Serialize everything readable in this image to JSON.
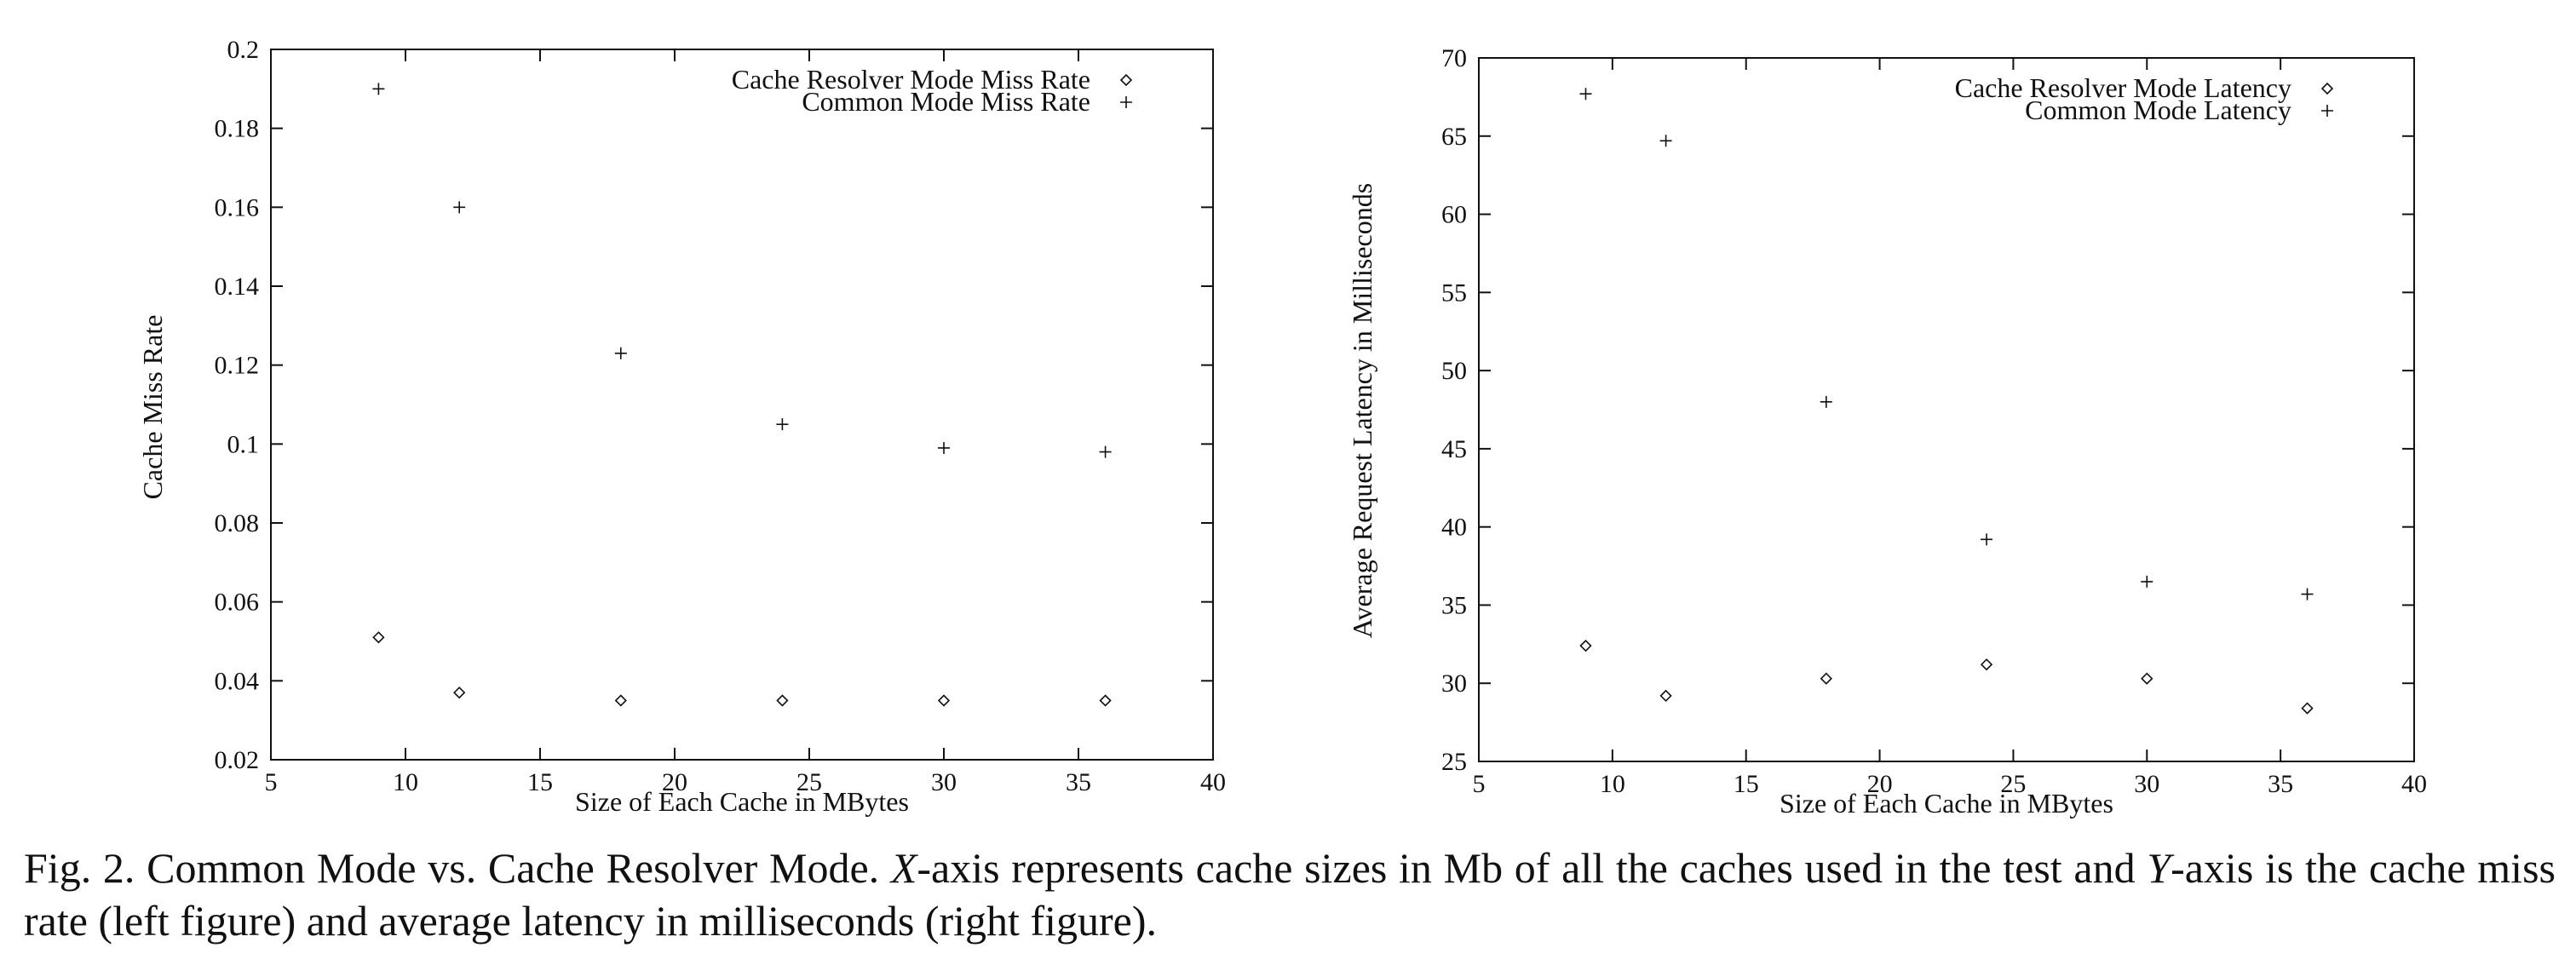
{
  "chart_data": [
    {
      "type": "scatter",
      "xlabel": "Size of Each Cache in MBytes",
      "ylabel": "Cache Miss Rate",
      "xlim": [
        5,
        40
      ],
      "ylim": [
        0.02,
        0.2
      ],
      "xticks": [
        5,
        10,
        15,
        20,
        25,
        30,
        35,
        40
      ],
      "yticks": [
        0.02,
        0.04,
        0.06,
        0.08,
        0.1,
        0.12,
        0.14,
        0.16,
        0.18,
        0.2
      ],
      "ytick_labels": [
        "0.02",
        "0.04",
        "0.06",
        "0.08",
        "0.1",
        "0.12",
        "0.14",
        "0.16",
        "0.18",
        "0.2"
      ],
      "legend_position": "top-right",
      "grid": false,
      "series": [
        {
          "name": "Cache Resolver Mode Miss Rate",
          "marker": "diamond",
          "x": [
            9,
            12,
            18,
            24,
            30,
            36
          ],
          "y": [
            0.051,
            0.037,
            0.035,
            0.035,
            0.035,
            0.035
          ]
        },
        {
          "name": "Common Mode Miss Rate",
          "marker": "plus",
          "x": [
            9,
            12,
            18,
            24,
            30,
            36
          ],
          "y": [
            0.19,
            0.16,
            0.123,
            0.105,
            0.099,
            0.098
          ]
        }
      ]
    },
    {
      "type": "scatter",
      "xlabel": "Size of Each Cache in MBytes",
      "ylabel": "Average Request Latency in Milliseconds",
      "xlim": [
        5,
        40
      ],
      "ylim": [
        25,
        70
      ],
      "xticks": [
        5,
        10,
        15,
        20,
        25,
        30,
        35,
        40
      ],
      "yticks": [
        25,
        30,
        35,
        40,
        45,
        50,
        55,
        60,
        65,
        70
      ],
      "ytick_labels": [
        "25",
        "30",
        "35",
        "40",
        "45",
        "50",
        "55",
        "60",
        "65",
        "70"
      ],
      "legend_position": "top-right",
      "grid": false,
      "series": [
        {
          "name": "Cache Resolver Mode Latency",
          "marker": "diamond",
          "x": [
            9,
            12,
            18,
            24,
            30,
            36
          ],
          "y": [
            32.4,
            29.2,
            30.3,
            31.2,
            30.3,
            28.4
          ]
        },
        {
          "name": "Common Mode Latency",
          "marker": "plus",
          "x": [
            9,
            12,
            18,
            24,
            30,
            36
          ],
          "y": [
            67.7,
            64.7,
            48.0,
            39.2,
            36.5,
            35.7
          ]
        }
      ]
    }
  ],
  "caption": {
    "prefix": "Fig. 2. Common Mode vs. Cache Resolver Mode. ",
    "x_var": "X",
    "middle": "-axis represents cache sizes in Mb of all the caches used in the test and ",
    "y_var": "Y",
    "suffix": "-axis is the cache miss rate (left figure) and average latency in milliseconds (right figure)."
  }
}
